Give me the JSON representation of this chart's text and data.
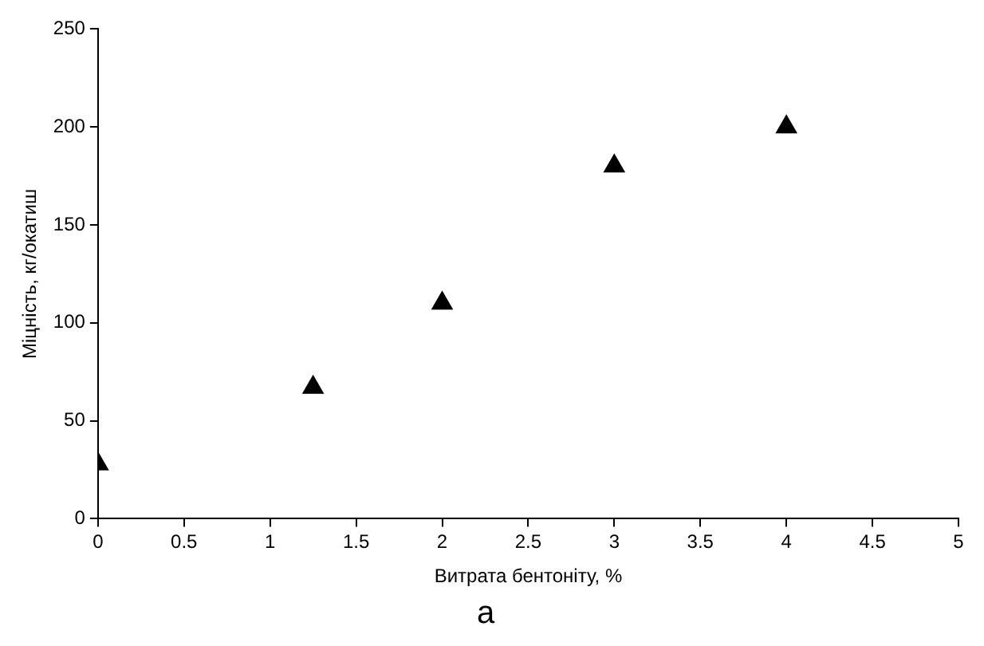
{
  "chart_data": {
    "type": "scatter",
    "xlabel": "Витрата бентоніту, %",
    "ylabel": "Міцність, кг/окатиш",
    "x": [
      0,
      1.25,
      2,
      3,
      4
    ],
    "series": [
      {
        "color": "#000000",
        "values": [
          28,
          67,
          110,
          180,
          200
        ]
      }
    ],
    "xlim": [
      0,
      5
    ],
    "xticks": [
      0,
      0.5,
      1,
      1.5,
      2,
      2.5,
      3,
      3.5,
      4,
      4.5,
      5
    ],
    "ylim": [
      0,
      250
    ],
    "yticks": [
      0,
      50,
      100,
      150,
      200,
      250
    ],
    "grid": false,
    "legend": false,
    "marker": "triangle",
    "annotations": [
      "а"
    ]
  }
}
